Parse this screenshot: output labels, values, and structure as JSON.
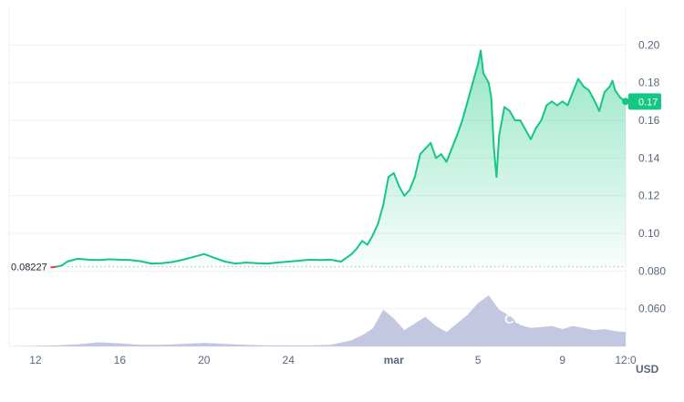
{
  "chart_data": {
    "type": "line",
    "currency_unit": "USD",
    "watermark": "CoinMarketCap",
    "open_price": 0.08227,
    "open_price_label": "0.08227",
    "current_price": 0.17,
    "current_price_label": "0.17",
    "ylim": [
      0.04,
      0.22
    ],
    "y_ticks": [
      {
        "value": 0.06,
        "label": "0.060"
      },
      {
        "value": 0.08,
        "label": "0.080"
      },
      {
        "value": 0.1,
        "label": "0.10"
      },
      {
        "value": 0.12,
        "label": "0.12"
      },
      {
        "value": 0.14,
        "label": "0.14"
      },
      {
        "value": 0.16,
        "label": "0.16"
      },
      {
        "value": 0.18,
        "label": "0.18"
      },
      {
        "value": 0.2,
        "label": "0.20"
      }
    ],
    "x_range": [
      "2023-02-10T18:00",
      "2023-03-12T00:00"
    ],
    "x_ticks": [
      {
        "t": "2023-02-12T00:00",
        "label": "12",
        "bold": false
      },
      {
        "t": "2023-02-16T00:00",
        "label": "16",
        "bold": false
      },
      {
        "t": "2023-02-20T00:00",
        "label": "20",
        "bold": false
      },
      {
        "t": "2023-02-24T00:00",
        "label": "24",
        "bold": false
      },
      {
        "t": "2023-03-01T00:00",
        "label": "mar",
        "bold": true
      },
      {
        "t": "2023-03-05T00:00",
        "label": "5",
        "bold": false
      },
      {
        "t": "2023-03-09T00:00",
        "label": "9",
        "bold": false
      },
      {
        "t": "2023-03-12T00:00",
        "label": "12:0",
        "bold": false
      }
    ],
    "colors": {
      "line_up": "#16c784",
      "line_down": "#ea3943",
      "volume": "#b8bedb",
      "badge": "#16c784",
      "grid": "#eef0f3",
      "label": "#58667e"
    },
    "price_series": [
      [
        "2023-02-12T18:00",
        0.082
      ],
      [
        "2023-02-13T00:00",
        0.0823
      ],
      [
        "2023-02-13T06:00",
        0.0829
      ],
      [
        "2023-02-13T12:00",
        0.085
      ],
      [
        "2023-02-14T00:00",
        0.0865
      ],
      [
        "2023-02-14T12:00",
        0.086
      ],
      [
        "2023-02-15T00:00",
        0.0858
      ],
      [
        "2023-02-15T12:00",
        0.0862
      ],
      [
        "2023-02-16T00:00",
        0.086
      ],
      [
        "2023-02-16T12:00",
        0.0858
      ],
      [
        "2023-02-17T00:00",
        0.0852
      ],
      [
        "2023-02-17T12:00",
        0.084
      ],
      [
        "2023-02-18T00:00",
        0.0842
      ],
      [
        "2023-02-18T12:00",
        0.0848
      ],
      [
        "2023-02-19T00:00",
        0.086
      ],
      [
        "2023-02-19T12:00",
        0.0875
      ],
      [
        "2023-02-20T00:00",
        0.089
      ],
      [
        "2023-02-20T12:00",
        0.087
      ],
      [
        "2023-02-21T00:00",
        0.085
      ],
      [
        "2023-02-21T12:00",
        0.084
      ],
      [
        "2023-02-22T00:00",
        0.0845
      ],
      [
        "2023-02-22T12:00",
        0.0842
      ],
      [
        "2023-02-23T00:00",
        0.084
      ],
      [
        "2023-02-23T12:00",
        0.0845
      ],
      [
        "2023-02-24T00:00",
        0.085
      ],
      [
        "2023-02-24T12:00",
        0.0855
      ],
      [
        "2023-02-25T00:00",
        0.086
      ],
      [
        "2023-02-25T12:00",
        0.0858
      ],
      [
        "2023-02-26T00:00",
        0.086
      ],
      [
        "2023-02-26T12:00",
        0.085
      ],
      [
        "2023-02-27T00:00",
        0.089
      ],
      [
        "2023-02-27T06:00",
        0.092
      ],
      [
        "2023-02-27T12:00",
        0.096
      ],
      [
        "2023-02-27T18:00",
        0.094
      ],
      [
        "2023-02-28T00:00",
        0.099
      ],
      [
        "2023-02-28T06:00",
        0.105
      ],
      [
        "2023-02-28T12:00",
        0.115
      ],
      [
        "2023-02-28T18:00",
        0.13
      ],
      [
        "2023-03-01T00:00",
        0.132
      ],
      [
        "2023-03-01T06:00",
        0.125
      ],
      [
        "2023-03-01T12:00",
        0.12
      ],
      [
        "2023-03-01T18:00",
        0.123
      ],
      [
        "2023-03-02T00:00",
        0.13
      ],
      [
        "2023-03-02T06:00",
        0.142
      ],
      [
        "2023-03-02T12:00",
        0.145
      ],
      [
        "2023-03-02T18:00",
        0.148
      ],
      [
        "2023-03-03T00:00",
        0.14
      ],
      [
        "2023-03-03T06:00",
        0.142
      ],
      [
        "2023-03-03T12:00",
        0.138
      ],
      [
        "2023-03-03T18:00",
        0.145
      ],
      [
        "2023-03-04T00:00",
        0.152
      ],
      [
        "2023-03-04T06:00",
        0.16
      ],
      [
        "2023-03-04T12:00",
        0.17
      ],
      [
        "2023-03-04T18:00",
        0.18
      ],
      [
        "2023-03-05T00:00",
        0.19
      ],
      [
        "2023-03-05T03:00",
        0.197
      ],
      [
        "2023-03-05T06:00",
        0.185
      ],
      [
        "2023-03-05T12:00",
        0.18
      ],
      [
        "2023-03-05T15:00",
        0.172
      ],
      [
        "2023-03-05T18:00",
        0.145
      ],
      [
        "2023-03-05T21:00",
        0.13
      ],
      [
        "2023-03-06T00:00",
        0.152
      ],
      [
        "2023-03-06T06:00",
        0.167
      ],
      [
        "2023-03-06T12:00",
        0.165
      ],
      [
        "2023-03-06T18:00",
        0.16
      ],
      [
        "2023-03-07T00:00",
        0.16
      ],
      [
        "2023-03-07T06:00",
        0.155
      ],
      [
        "2023-03-07T12:00",
        0.15
      ],
      [
        "2023-03-07T18:00",
        0.156
      ],
      [
        "2023-03-08T00:00",
        0.16
      ],
      [
        "2023-03-08T06:00",
        0.168
      ],
      [
        "2023-03-08T12:00",
        0.17
      ],
      [
        "2023-03-08T18:00",
        0.168
      ],
      [
        "2023-03-09T00:00",
        0.17
      ],
      [
        "2023-03-09T06:00",
        0.168
      ],
      [
        "2023-03-09T12:00",
        0.175
      ],
      [
        "2023-03-09T18:00",
        0.182
      ],
      [
        "2023-03-10T00:00",
        0.178
      ],
      [
        "2023-03-10T06:00",
        0.176
      ],
      [
        "2023-03-10T12:00",
        0.171
      ],
      [
        "2023-03-10T18:00",
        0.165
      ],
      [
        "2023-03-11T00:00",
        0.175
      ],
      [
        "2023-03-11T06:00",
        0.178
      ],
      [
        "2023-03-11T09:00",
        0.181
      ],
      [
        "2023-03-11T12:00",
        0.176
      ],
      [
        "2023-03-11T18:00",
        0.172
      ],
      [
        "2023-03-12T00:00",
        0.17
      ]
    ],
    "volume_series": [
      [
        "2023-02-10T18:00",
        0.0
      ],
      [
        "2023-02-12T00:00",
        0.01
      ],
      [
        "2023-02-13T00:00",
        0.02
      ],
      [
        "2023-02-14T00:00",
        0.04
      ],
      [
        "2023-02-15T00:00",
        0.08
      ],
      [
        "2023-02-16T00:00",
        0.06
      ],
      [
        "2023-02-17T00:00",
        0.03
      ],
      [
        "2023-02-18T00:00",
        0.03
      ],
      [
        "2023-02-19T00:00",
        0.05
      ],
      [
        "2023-02-20T00:00",
        0.07
      ],
      [
        "2023-02-21T00:00",
        0.05
      ],
      [
        "2023-02-22T00:00",
        0.03
      ],
      [
        "2023-02-23T00:00",
        0.02
      ],
      [
        "2023-02-24T00:00",
        0.02
      ],
      [
        "2023-02-25T00:00",
        0.02
      ],
      [
        "2023-02-26T00:00",
        0.03
      ],
      [
        "2023-02-27T00:00",
        0.12
      ],
      [
        "2023-02-27T12:00",
        0.22
      ],
      [
        "2023-02-28T00:00",
        0.35
      ],
      [
        "2023-02-28T12:00",
        0.72
      ],
      [
        "2023-03-01T00:00",
        0.55
      ],
      [
        "2023-03-01T12:00",
        0.32
      ],
      [
        "2023-03-02T00:00",
        0.45
      ],
      [
        "2023-03-02T12:00",
        0.58
      ],
      [
        "2023-03-03T00:00",
        0.4
      ],
      [
        "2023-03-03T12:00",
        0.28
      ],
      [
        "2023-03-04T00:00",
        0.45
      ],
      [
        "2023-03-04T12:00",
        0.62
      ],
      [
        "2023-03-05T00:00",
        0.85
      ],
      [
        "2023-03-05T12:00",
        1.0
      ],
      [
        "2023-03-06T00:00",
        0.72
      ],
      [
        "2023-03-06T12:00",
        0.6
      ],
      [
        "2023-03-07T00:00",
        0.42
      ],
      [
        "2023-03-07T12:00",
        0.36
      ],
      [
        "2023-03-08T00:00",
        0.38
      ],
      [
        "2023-03-08T12:00",
        0.4
      ],
      [
        "2023-03-09T00:00",
        0.34
      ],
      [
        "2023-03-09T12:00",
        0.4
      ],
      [
        "2023-03-10T00:00",
        0.36
      ],
      [
        "2023-03-10T12:00",
        0.32
      ],
      [
        "2023-03-11T00:00",
        0.34
      ],
      [
        "2023-03-11T12:00",
        0.3
      ],
      [
        "2023-03-12T00:00",
        0.28
      ]
    ]
  }
}
